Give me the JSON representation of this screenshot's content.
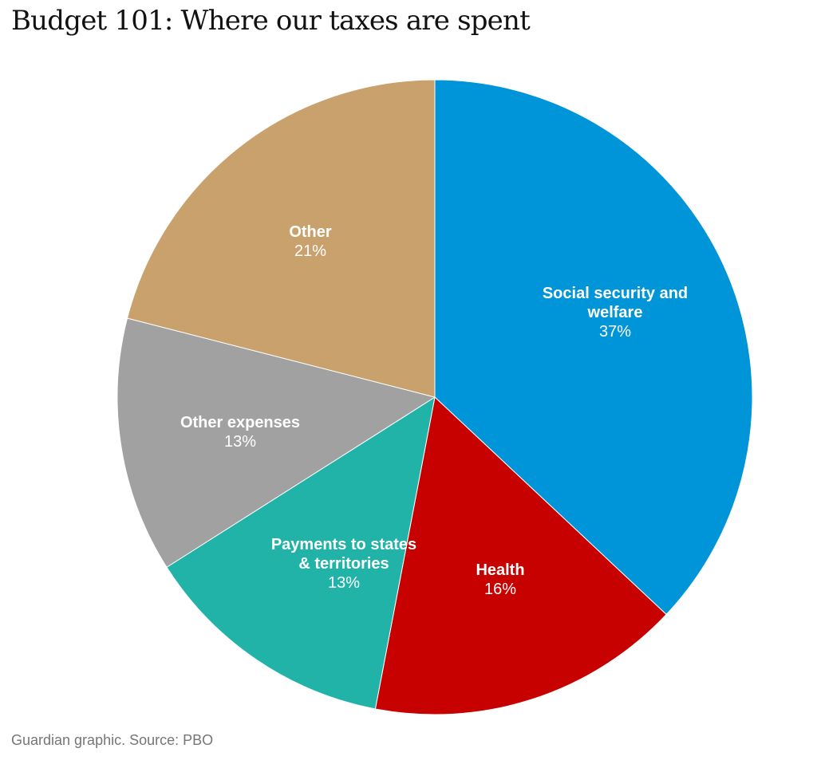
{
  "chart_data": {
    "type": "pie",
    "title": "Budget 101: Where our taxes are spent",
    "slices": [
      {
        "label": [
          "Social security and",
          "welfare"
        ],
        "value": 37,
        "value_label": "37%",
        "color": "#0094d9"
      },
      {
        "label": [
          "Health"
        ],
        "value": 16,
        "value_label": "16%",
        "color": "#c70000"
      },
      {
        "label": [
          "Payments to states",
          "& territories"
        ],
        "value": 13,
        "value_label": "13%",
        "color": "#22b3a8"
      },
      {
        "label": [
          "Other expenses"
        ],
        "value": 13,
        "value_label": "13%",
        "color": "#a1a1a1"
      },
      {
        "label": [
          "Other"
        ],
        "value": 21,
        "value_label": "21%",
        "color": "#c9a16d"
      }
    ],
    "start": "12 o'clock",
    "direction": "clockwise",
    "source": "Guardian graphic. Source: PBO"
  }
}
